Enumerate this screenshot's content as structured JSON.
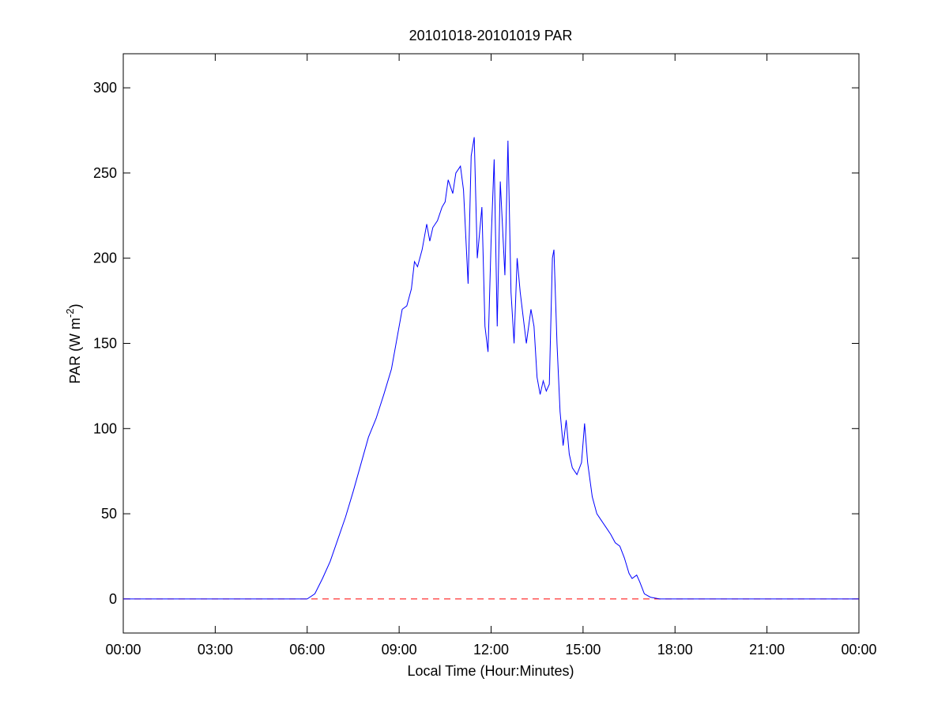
{
  "chart_data": {
    "type": "line",
    "title": "20101018-20101019 PAR",
    "xlabel": "Local Time (Hour:Minutes)",
    "ylabel_parts": [
      "PAR (W m",
      "-2",
      ")"
    ],
    "xlim": [
      0,
      24
    ],
    "xticks": [
      {
        "value": 0,
        "label": "00:00"
      },
      {
        "value": 3,
        "label": "03:00"
      },
      {
        "value": 6,
        "label": "06:00"
      },
      {
        "value": 9,
        "label": "09:00"
      },
      {
        "value": 12,
        "label": "12:00"
      },
      {
        "value": 15,
        "label": "15:00"
      },
      {
        "value": 18,
        "label": "18:00"
      },
      {
        "value": 21,
        "label": "21:00"
      },
      {
        "value": 24,
        "label": "00:00"
      }
    ],
    "ylim": [
      -20,
      320
    ],
    "yticks": [
      0,
      50,
      100,
      150,
      200,
      250,
      300
    ],
    "grid": false,
    "reference_lines": [
      {
        "value": 0,
        "color": "#ff0000",
        "style": "dashed"
      }
    ],
    "series": [
      {
        "color": "#0000ff",
        "x": [
          0,
          6.0,
          6.25,
          6.5,
          6.75,
          7.0,
          7.25,
          7.5,
          7.75,
          8.0,
          8.25,
          8.5,
          8.75,
          9.0,
          9.1,
          9.25,
          9.4,
          9.5,
          9.6,
          9.75,
          9.9,
          10.0,
          10.1,
          10.25,
          10.4,
          10.5,
          10.6,
          10.75,
          10.85,
          11.0,
          11.1,
          11.25,
          11.35,
          11.45,
          11.55,
          11.7,
          11.8,
          11.9,
          12.0,
          12.1,
          12.2,
          12.3,
          12.45,
          12.55,
          12.65,
          12.75,
          12.85,
          12.95,
          13.05,
          13.15,
          13.3,
          13.4,
          13.5,
          13.6,
          13.7,
          13.8,
          13.9,
          14.0,
          14.05,
          14.15,
          14.25,
          14.35,
          14.45,
          14.55,
          14.65,
          14.8,
          14.95,
          15.05,
          15.15,
          15.3,
          15.45,
          15.6,
          15.75,
          15.9,
          16.05,
          16.2,
          16.35,
          16.5,
          16.6,
          16.75,
          16.85,
          17.0,
          17.2,
          17.5,
          24
        ],
        "values": [
          0,
          0,
          3,
          12,
          22,
          35,
          48,
          63,
          79,
          95,
          106,
          120,
          135,
          160,
          170,
          172,
          182,
          198,
          195,
          205,
          220,
          210,
          218,
          222,
          230,
          233,
          246,
          238,
          250,
          254,
          240,
          185,
          260,
          271,
          200,
          230,
          160,
          145,
          210,
          258,
          160,
          245,
          190,
          269,
          180,
          150,
          200,
          180,
          165,
          150,
          170,
          160,
          130,
          120,
          128,
          122,
          126,
          200,
          205,
          150,
          110,
          90,
          105,
          85,
          77,
          73,
          80,
          103,
          80,
          60,
          50,
          46,
          42,
          38,
          33,
          31,
          24,
          15,
          12,
          14,
          10,
          3,
          1,
          0,
          0
        ]
      }
    ]
  }
}
